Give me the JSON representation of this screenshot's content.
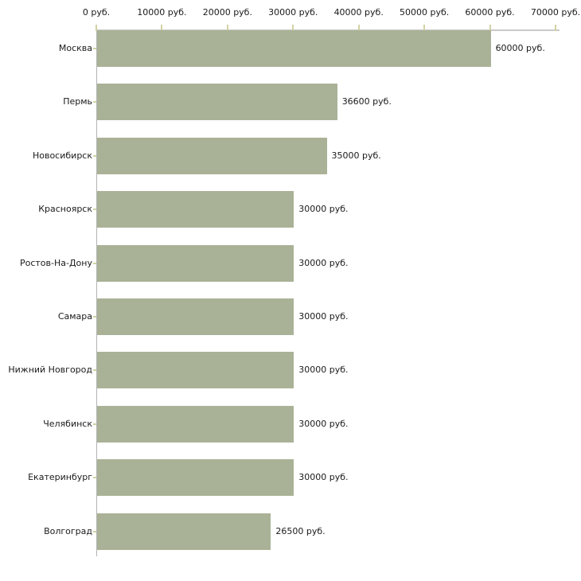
{
  "chart_data": {
    "type": "bar",
    "orientation": "horizontal",
    "title": "",
    "xlabel": "",
    "ylabel": "",
    "grid": false,
    "legend": null,
    "categories": [
      "Москва",
      "Пермь",
      "Новосибирск",
      "Красноярск",
      "Ростов-На-Дону",
      "Самара",
      "Нижний Новгород",
      "Челябинск",
      "Екатеринбург",
      "Волгоград"
    ],
    "values": [
      60000,
      36600,
      35000,
      30000,
      30000,
      30000,
      30000,
      30000,
      30000,
      26500
    ],
    "value_labels": [
      "60000 руб.",
      "36600 руб.",
      "35000 руб.",
      "30000 руб.",
      "30000 руб.",
      "30000 руб.",
      "30000 руб.",
      "30000 руб.",
      "30000 руб.",
      "26500 руб."
    ],
    "x_axis": {
      "position": "top",
      "tick_values": [
        0,
        10000,
        20000,
        30000,
        40000,
        50000,
        60000,
        70000
      ],
      "tick_labels": [
        "0 руб.",
        "10000 руб.",
        "20000 руб.",
        "30000 руб.",
        "40000 руб.",
        "50000 руб.",
        "60000 руб.",
        "70000 руб."
      ],
      "xlim": [
        0,
        70000
      ],
      "unit": "руб."
    },
    "colors": {
      "bar": "#a9b296",
      "x_axis_line": "#c9c9c9",
      "y_axis_line": "#b3b3b3",
      "tick": "#d2d2a4",
      "text": "#1a1a1a"
    }
  }
}
